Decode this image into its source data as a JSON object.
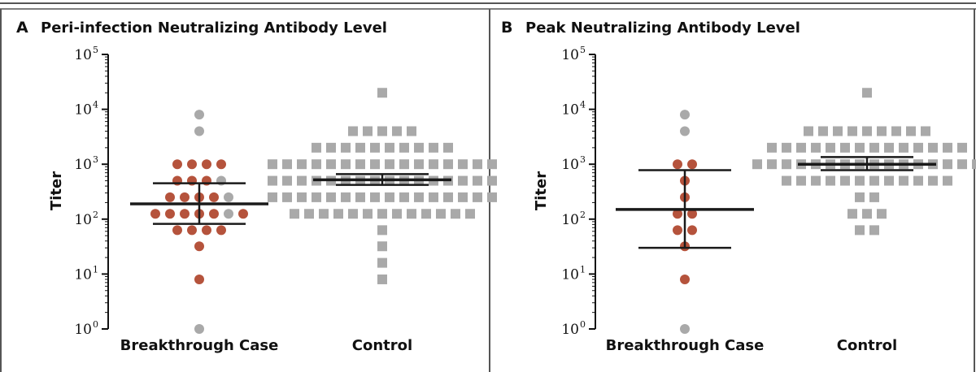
{
  "colors": {
    "breakthrough": "#b5533c",
    "gray": "#a9a9a9",
    "summary": "#1a1a1a",
    "frame": "#555555"
  },
  "chart_data": [
    {
      "type": "scatter",
      "panel_letter": "A",
      "title": "Peri-infection Neutralizing Antibody Level",
      "ylabel": "Titer",
      "xlabel": "",
      "yscale": "log10",
      "ylim": [
        1,
        100000
      ],
      "y_ticks": [
        {
          "base": "10",
          "exp": "0"
        },
        {
          "base": "10",
          "exp": "1"
        },
        {
          "base": "10",
          "exp": "2"
        },
        {
          "base": "10",
          "exp": "3"
        },
        {
          "base": "10",
          "exp": "4"
        },
        {
          "base": "10",
          "exp": "5"
        }
      ],
      "categories": [
        "Breakthrough Case",
        "Control"
      ],
      "groups": [
        {
          "category": "Breakthrough Case",
          "marker": "circle",
          "points": [
            {
              "value": 8000,
              "color": "gray"
            },
            {
              "value": 4000,
              "color": "gray"
            },
            {
              "value": 1000,
              "count": 4,
              "color": "breakthrough"
            },
            {
              "value": 500,
              "count": 4,
              "colors": [
                "breakthrough",
                "breakthrough",
                "breakthrough",
                "gray"
              ]
            },
            {
              "value": 250,
              "count": 5,
              "colors": [
                "breakthrough",
                "breakthrough",
                "breakthrough",
                "breakthrough",
                "gray"
              ]
            },
            {
              "value": 125,
              "count": 7,
              "colors": [
                "breakthrough",
                "breakthrough",
                "breakthrough",
                "breakthrough",
                "breakthrough",
                "gray",
                "breakthrough"
              ]
            },
            {
              "value": 63,
              "count": 4,
              "color": "breakthrough"
            },
            {
              "value": 32,
              "color": "breakthrough"
            },
            {
              "value": 8,
              "color": "breakthrough"
            },
            {
              "value": 1,
              "color": "gray"
            }
          ],
          "summary": {
            "center": 190,
            "lower": 82,
            "upper": 450
          }
        },
        {
          "category": "Control",
          "marker": "square",
          "points": [
            {
              "value": 20000,
              "count": 1
            },
            {
              "value": 4000,
              "count": 5
            },
            {
              "value": 2000,
              "count": 10
            },
            {
              "value": 1000,
              "count": 16
            },
            {
              "value": 500,
              "count": 16
            },
            {
              "value": 250,
              "count": 16
            },
            {
              "value": 125,
              "count": 13
            },
            {
              "value": 63,
              "count": 1
            },
            {
              "value": 32,
              "count": 1
            },
            {
              "value": 16,
              "count": 1
            },
            {
              "value": 8,
              "count": 1
            }
          ],
          "summary": {
            "center": 520,
            "lower": 420,
            "upper": 660
          }
        }
      ]
    },
    {
      "type": "scatter",
      "panel_letter": "B",
      "title": "Peak Neutralizing Antibody Level",
      "ylabel": "Titer",
      "xlabel": "",
      "yscale": "log10",
      "ylim": [
        1,
        100000
      ],
      "y_ticks": [
        {
          "base": "10",
          "exp": "0"
        },
        {
          "base": "10",
          "exp": "1"
        },
        {
          "base": "10",
          "exp": "2"
        },
        {
          "base": "10",
          "exp": "3"
        },
        {
          "base": "10",
          "exp": "4"
        },
        {
          "base": "10",
          "exp": "5"
        }
      ],
      "categories": [
        "Breakthrough Case",
        "Control"
      ],
      "groups": [
        {
          "category": "Breakthrough Case",
          "marker": "circle",
          "points": [
            {
              "value": 8000,
              "color": "gray"
            },
            {
              "value": 4000,
              "color": "gray"
            },
            {
              "value": 1000,
              "count": 2,
              "color": "breakthrough"
            },
            {
              "value": 500,
              "color": "breakthrough"
            },
            {
              "value": 250,
              "color": "breakthrough"
            },
            {
              "value": 125,
              "count": 2,
              "color": "breakthrough"
            },
            {
              "value": 63,
              "count": 2,
              "color": "breakthrough"
            },
            {
              "value": 32,
              "color": "breakthrough"
            },
            {
              "value": 8,
              "color": "breakthrough"
            },
            {
              "value": 1,
              "color": "gray"
            }
          ],
          "summary": {
            "center": 150,
            "lower": 30,
            "upper": 780
          }
        },
        {
          "category": "Control",
          "marker": "square",
          "points": [
            {
              "value": 20000,
              "count": 1
            },
            {
              "value": 4000,
              "count": 9
            },
            {
              "value": 2000,
              "count": 14
            },
            {
              "value": 1000,
              "count": 16
            },
            {
              "value": 500,
              "count": 12
            },
            {
              "value": 250,
              "count": 2
            },
            {
              "value": 125,
              "count": 3
            },
            {
              "value": 63,
              "count": 2
            }
          ],
          "summary": {
            "center": 1000,
            "lower": 780,
            "upper": 1350
          }
        }
      ]
    }
  ]
}
